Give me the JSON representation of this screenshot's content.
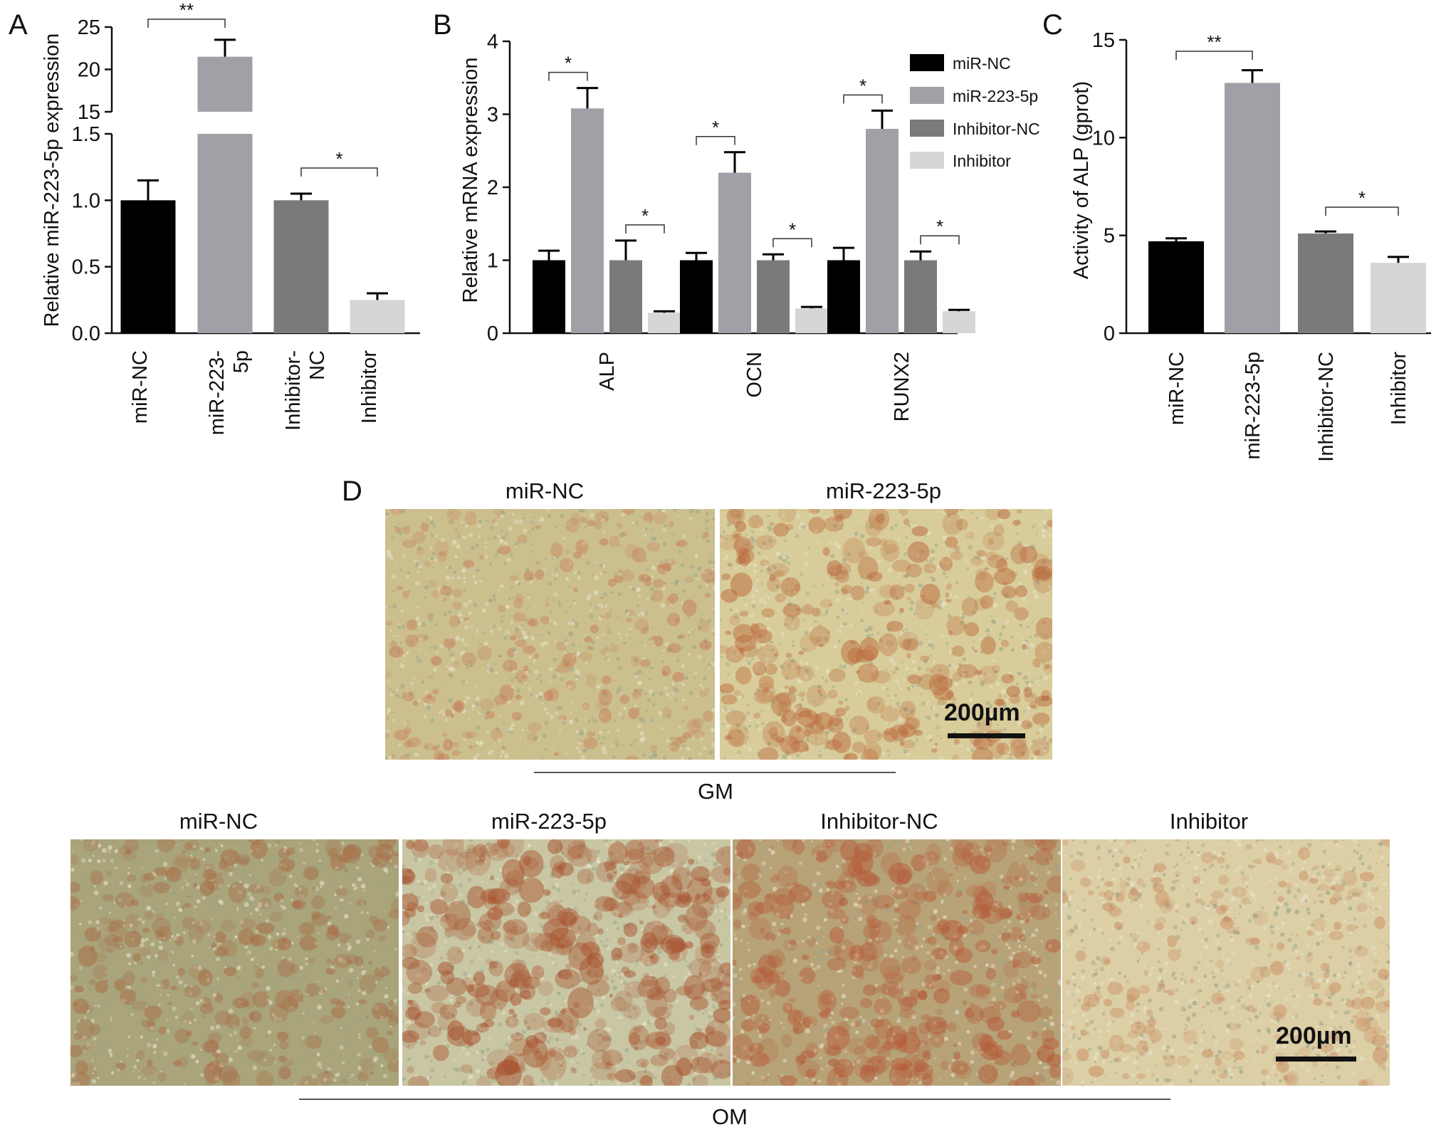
{
  "chart_data": [
    {
      "panel": "A",
      "type": "bar",
      "categories": [
        "miR-NC",
        "miR-223-\n5p",
        "Inhibitor-\nNC",
        "Inhibitor"
      ],
      "values": [
        1.0,
        21.5,
        1.0,
        0.25
      ],
      "errors": [
        0.15,
        2.0,
        0.05,
        0.05
      ],
      "colors": [
        "#000000",
        "#a0a0a6",
        "#7a7a7a",
        "#d6d6d6"
      ],
      "ylabel": "Relative miR-223-5p expression",
      "axis_break": {
        "lower": [
          0,
          1.5
        ],
        "upper": [
          15,
          25
        ]
      },
      "yticks_lower": [
        "0.0",
        "0.5",
        "1.0",
        "1.5"
      ],
      "yticks_upper": [
        "15",
        "20",
        "25"
      ],
      "significance": [
        {
          "from": 0,
          "to": 1,
          "label": "**"
        },
        {
          "from": 2,
          "to": 3,
          "label": "*"
        }
      ]
    },
    {
      "panel": "B",
      "type": "bar",
      "categories": [
        "ALP",
        "OCN",
        "RUNX2"
      ],
      "series": [
        {
          "name": "miR-NC",
          "values": [
            1.0,
            1.0,
            1.0
          ],
          "errors": [
            0.13,
            0.1,
            0.17
          ],
          "color": "#000000"
        },
        {
          "name": "miR-223-5p",
          "values": [
            3.08,
            2.2,
            2.8
          ],
          "errors": [
            0.28,
            0.28,
            0.25
          ],
          "color": "#a0a0a6"
        },
        {
          "name": "Inhibitor-NC",
          "values": [
            1.0,
            1.0,
            1.0
          ],
          "errors": [
            0.27,
            0.08,
            0.12
          ],
          "color": "#7a7a7a"
        },
        {
          "name": "Inhibitor",
          "values": [
            0.28,
            0.34,
            0.3
          ],
          "errors": [
            0.02,
            0.02,
            0.02
          ],
          "color": "#d6d6d6"
        }
      ],
      "ylabel": "Relative mRNA expression",
      "ylim": [
        0,
        4
      ],
      "yticks": [
        "0",
        "1",
        "2",
        "3",
        "4"
      ],
      "legend": "top-right",
      "significance": [
        {
          "category": 0,
          "from": 0,
          "to": 1,
          "label": "*"
        },
        {
          "category": 0,
          "from": 2,
          "to": 3,
          "label": "*"
        },
        {
          "category": 1,
          "from": 0,
          "to": 1,
          "label": "*"
        },
        {
          "category": 1,
          "from": 2,
          "to": 3,
          "label": "*"
        },
        {
          "category": 2,
          "from": 0,
          "to": 1,
          "label": "*"
        },
        {
          "category": 2,
          "from": 2,
          "to": 3,
          "label": "*"
        }
      ]
    },
    {
      "panel": "C",
      "type": "bar",
      "categories": [
        "miR-NC",
        "miR-223-5p",
        "Inhibitor-NC",
        "Inhibitor"
      ],
      "values": [
        4.7,
        12.8,
        5.1,
        3.6
      ],
      "errors": [
        0.15,
        0.65,
        0.1,
        0.3
      ],
      "colors": [
        "#000000",
        "#a0a0a6",
        "#7a7a7a",
        "#d6d6d6"
      ],
      "ylabel": "Activity of ALP (gprot)",
      "ylim": [
        0,
        15
      ],
      "yticks": [
        "0",
        "5",
        "10",
        "15"
      ],
      "significance": [
        {
          "from": 0,
          "to": 1,
          "label": "**"
        },
        {
          "from": 2,
          "to": 3,
          "label": "*"
        }
      ]
    }
  ],
  "panel_d": {
    "letter": "D",
    "gm": {
      "label": "GM",
      "images": [
        {
          "title": "miR-NC",
          "base": "#ccbf8e",
          "stain": "#c47a55",
          "density": 0.18
        },
        {
          "title": "miR-223-5p",
          "base": "#d8cc9a",
          "stain": "#bb6b3e",
          "density": 0.38
        }
      ],
      "scale_bar": "200µm"
    },
    "om": {
      "label": "OM",
      "images": [
        {
          "title": "miR-NC",
          "base": "#a9a47a",
          "stain": "#a86a45",
          "density": 0.3
        },
        {
          "title": "miR-223-5p",
          "base": "#c9c6a3",
          "stain": "#a8522f",
          "density": 0.5
        },
        {
          "title": "Inhibitor-NC",
          "base": "#b8a277",
          "stain": "#b55a38",
          "density": 0.42
        },
        {
          "title": "Inhibitor",
          "base": "#dccfa6",
          "stain": "#c98a5f",
          "density": 0.2
        }
      ],
      "scale_bar": "200µm"
    }
  }
}
